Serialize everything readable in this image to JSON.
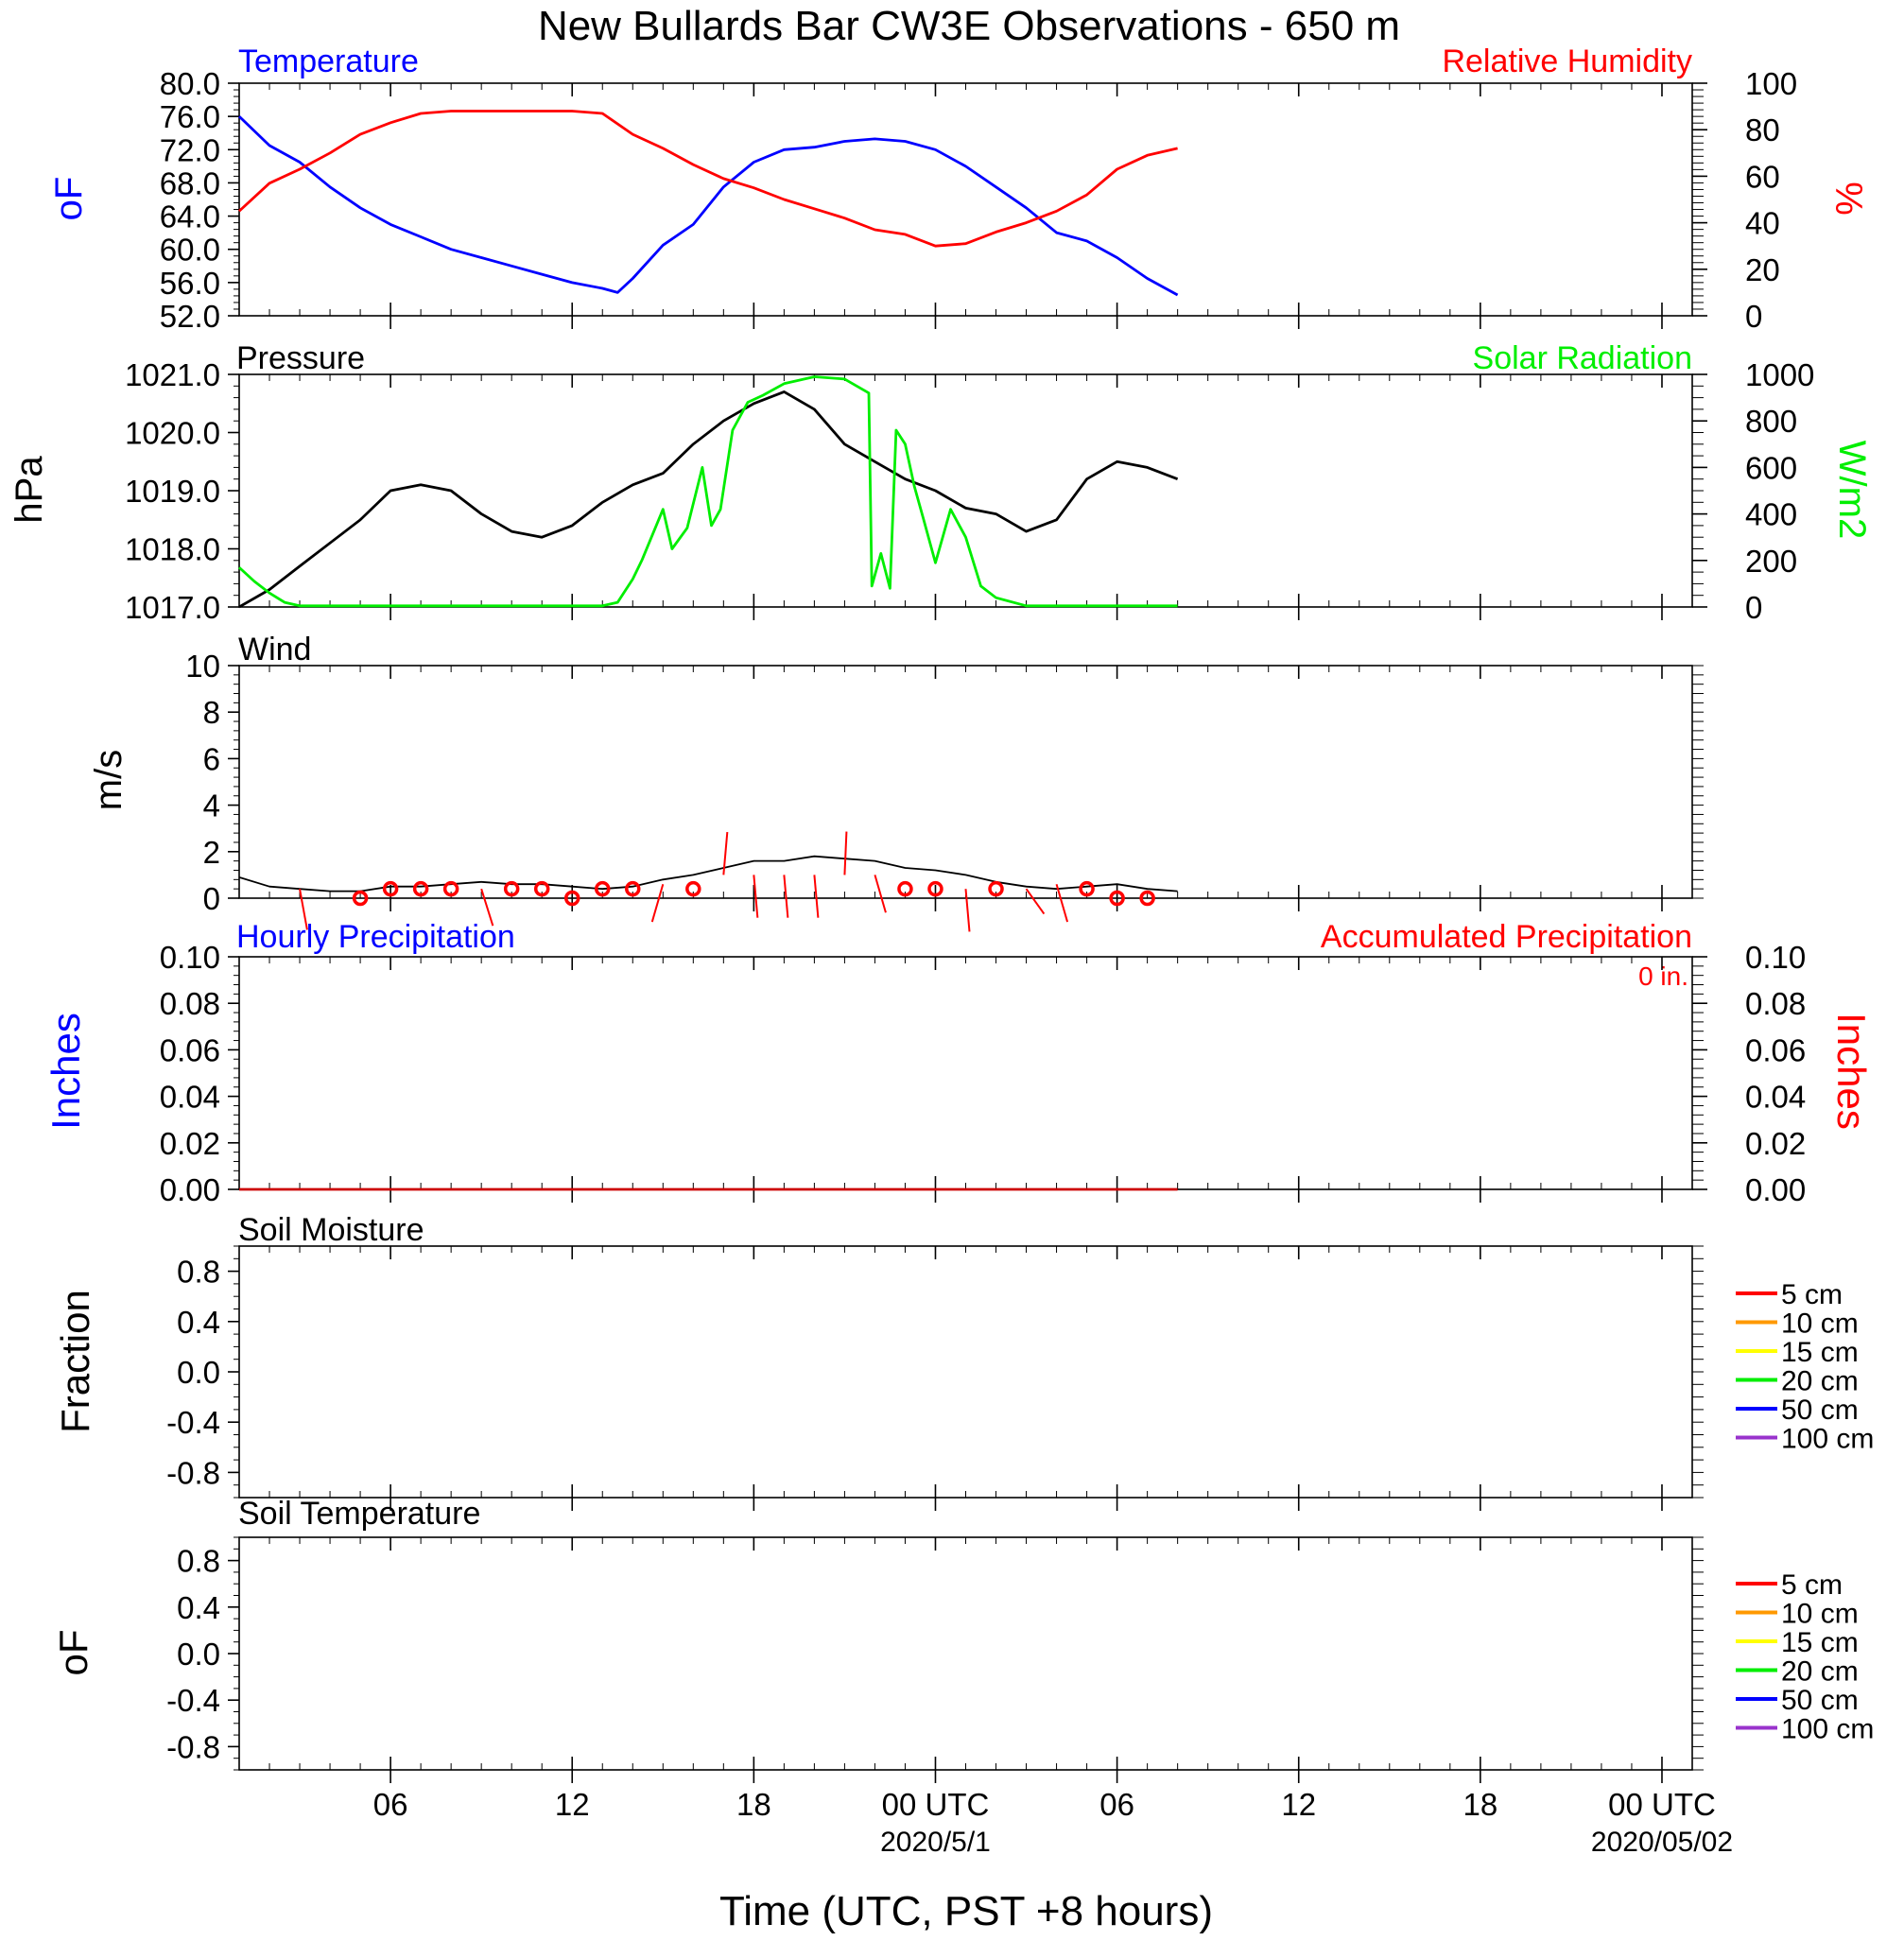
{
  "title": "New Bullards Bar CW3E Observations - 650 m",
  "xlabel": "Time (UTC, PST +8 hours)",
  "x_axis": {
    "tick_labels": [
      "06",
      "12",
      "18",
      "00 UTC",
      "06",
      "12",
      "18",
      "00 UTC"
    ],
    "tick_hours": [
      6,
      12,
      18,
      24,
      30,
      36,
      42,
      48
    ],
    "date_labels": [
      "2020/5/1",
      "2020/05/02"
    ],
    "date_label_hours": [
      24,
      48
    ],
    "range_hours": [
      1,
      49
    ]
  },
  "colors": {
    "temperature": "#0000ff",
    "humidity": "#ff0000",
    "pressure": "#000000",
    "solar": "#00ee00",
    "wind": "#000000",
    "wind_barbs": "#ff0000",
    "hourly_precip": "#0000ff",
    "accum_precip": "#cc0000",
    "depth_colors": [
      "#ff0000",
      "#ff9900",
      "#ffff00",
      "#00ee00",
      "#0000ff",
      "#9933cc"
    ]
  },
  "chart_data": [
    {
      "type": "line",
      "panel": "temperature-humidity",
      "title_left": "Temperature",
      "title_right": "Relative Humidity",
      "ylabel_left": "oF",
      "ylabel_right": "%",
      "y_left_ticks": [
        "80.0",
        "76.0",
        "72.0",
        "68.0",
        "64.0",
        "60.0",
        "56.0",
        "52.0"
      ],
      "y_right_ticks": [
        "100",
        "80",
        "60",
        "40",
        "20",
        "0"
      ],
      "ylim_left": [
        52,
        80
      ],
      "ylim_right": [
        0,
        100
      ],
      "series": [
        {
          "name": "Temperature",
          "axis": "left",
          "x": [
            1,
            2,
            3,
            4,
            5,
            6,
            7,
            8,
            9,
            10,
            11,
            12,
            13,
            13.5,
            14,
            15,
            16,
            17,
            18,
            19,
            20,
            21,
            22,
            23,
            24,
            25,
            26,
            27,
            28,
            29,
            30,
            31,
            32
          ],
          "y": [
            76.0,
            72.5,
            70.5,
            67.5,
            65.0,
            63.0,
            61.5,
            60.0,
            59.0,
            58.0,
            57.0,
            56.0,
            55.3,
            54.8,
            56.5,
            60.5,
            63.0,
            67.5,
            70.5,
            72.0,
            72.3,
            73.0,
            73.3,
            73.0,
            72.0,
            70.0,
            67.5,
            65.0,
            62.0,
            61.0,
            59.0,
            56.5,
            54.5
          ]
        },
        {
          "name": "Relative Humidity",
          "axis": "right",
          "x": [
            1,
            2,
            3,
            4,
            5,
            6,
            7,
            8,
            9,
            10,
            11,
            12,
            13,
            14,
            15,
            16,
            17,
            18,
            19,
            20,
            21,
            22,
            23,
            24,
            25,
            26,
            27,
            28,
            29,
            30,
            31,
            32
          ],
          "y": [
            45,
            57,
            63,
            70,
            78,
            83,
            87,
            88,
            88,
            88,
            88,
            88,
            87,
            78,
            72,
            65,
            59,
            55,
            50,
            46,
            42,
            37,
            35,
            30,
            31,
            36,
            40,
            45,
            52,
            63,
            69,
            72
          ]
        }
      ]
    },
    {
      "type": "line",
      "panel": "pressure-solar",
      "title_left": "Pressure",
      "title_right": "Solar Radiation",
      "ylabel_left": "hPa",
      "ylabel_right": "W/m2",
      "y_left_ticks": [
        "1021.0",
        "1020.0",
        "1019.0",
        "1018.0",
        "1017.0"
      ],
      "y_right_ticks": [
        "1000",
        "800",
        "600",
        "400",
        "200",
        "0"
      ],
      "ylim_left": [
        1017,
        1021
      ],
      "ylim_right": [
        0,
        1000
      ],
      "series": [
        {
          "name": "Pressure",
          "axis": "left",
          "x": [
            1,
            2,
            3,
            4,
            5,
            6,
            7,
            8,
            9,
            10,
            11,
            12,
            13,
            14,
            15,
            16,
            17,
            18,
            19,
            20,
            21,
            22,
            23,
            24,
            25,
            26,
            27,
            28,
            29,
            30,
            31,
            32
          ],
          "y": [
            1017.0,
            1017.3,
            1017.7,
            1018.1,
            1018.5,
            1019.0,
            1019.1,
            1019.0,
            1018.6,
            1018.3,
            1018.2,
            1018.4,
            1018.8,
            1019.1,
            1019.3,
            1019.8,
            1020.2,
            1020.5,
            1020.7,
            1020.4,
            1019.8,
            1019.5,
            1019.2,
            1019.0,
            1018.7,
            1018.6,
            1018.3,
            1018.5,
            1019.2,
            1019.5,
            1019.4,
            1019.2
          ]
        },
        {
          "name": "Solar Radiation",
          "axis": "right",
          "x": [
            1,
            1.5,
            2,
            2.5,
            3,
            13,
            13.5,
            14,
            14.3,
            15,
            15.3,
            15.8,
            16.3,
            16.6,
            16.9,
            17.3,
            17.8,
            18.3,
            19,
            20,
            21,
            21.8,
            21.9,
            22.2,
            22.5,
            22.7,
            23,
            23.3,
            23.6,
            24,
            24.5,
            25,
            25.5,
            26,
            27,
            32
          ],
          "y": [
            170,
            110,
            60,
            20,
            5,
            5,
            20,
            120,
            200,
            420,
            250,
            340,
            600,
            350,
            420,
            760,
            880,
            910,
            960,
            990,
            980,
            920,
            90,
            230,
            80,
            760,
            700,
            520,
            380,
            190,
            420,
            300,
            90,
            40,
            5,
            5
          ]
        }
      ]
    },
    {
      "type": "line",
      "panel": "wind",
      "title_left": "Wind",
      "ylabel_left": "m/s",
      "y_left_ticks": [
        "10",
        "8",
        "6",
        "4",
        "2",
        "0"
      ],
      "ylim_left": [
        0,
        10
      ],
      "series": [
        {
          "name": "Wind",
          "axis": "left",
          "x": [
            1,
            2,
            3,
            4,
            5,
            6,
            7,
            8,
            9,
            10,
            11,
            12,
            13,
            14,
            15,
            16,
            17,
            18,
            19,
            20,
            21,
            22,
            23,
            24,
            25,
            26,
            27,
            28,
            29,
            30,
            31,
            32
          ],
          "y": [
            0.9,
            0.5,
            0.4,
            0.3,
            0.3,
            0.5,
            0.5,
            0.6,
            0.7,
            0.6,
            0.6,
            0.5,
            0.4,
            0.5,
            0.8,
            1.0,
            1.3,
            1.6,
            1.6,
            1.8,
            1.7,
            1.6,
            1.3,
            1.2,
            1.0,
            0.7,
            0.5,
            0.4,
            0.5,
            0.6,
            0.4,
            0.3
          ]
        }
      ],
      "barbs": [
        {
          "x": 3,
          "speed": 0.4,
          "dir_deg": 160
        },
        {
          "x": 5,
          "speed": 0.0,
          "dir_deg": 0
        },
        {
          "x": 6,
          "speed": 0.4,
          "dir_deg": 0
        },
        {
          "x": 7,
          "speed": 0.4,
          "dir_deg": 0
        },
        {
          "x": 8,
          "speed": 0.4,
          "dir_deg": 0
        },
        {
          "x": 9,
          "speed": 0.4,
          "dir_deg": 148
        },
        {
          "x": 10,
          "speed": 0.4,
          "dir_deg": 0
        },
        {
          "x": 11,
          "speed": 0.4,
          "dir_deg": 0
        },
        {
          "x": 12,
          "speed": 0.0,
          "dir_deg": 0
        },
        {
          "x": 13,
          "speed": 0.4,
          "dir_deg": 0
        },
        {
          "x": 14,
          "speed": 0.4,
          "dir_deg": 0
        },
        {
          "x": 15,
          "speed": 0.6,
          "dir_deg": 210
        },
        {
          "x": 16,
          "speed": 0.4,
          "dir_deg": 0
        },
        {
          "x": 17,
          "speed": 1.0,
          "dir_deg": 10
        },
        {
          "x": 18,
          "speed": 1.0,
          "dir_deg": 170
        },
        {
          "x": 19,
          "speed": 1.0,
          "dir_deg": 170
        },
        {
          "x": 20,
          "speed": 1.0,
          "dir_deg": 170
        },
        {
          "x": 21,
          "speed": 1.0,
          "dir_deg": 5
        },
        {
          "x": 22,
          "speed": 1.0,
          "dir_deg": 150
        },
        {
          "x": 23,
          "speed": 0.4,
          "dir_deg": 0
        },
        {
          "x": 24,
          "speed": 0.4,
          "dir_deg": 0
        },
        {
          "x": 25,
          "speed": 0.4,
          "dir_deg": 170
        },
        {
          "x": 26,
          "speed": 0.4,
          "dir_deg": 0
        },
        {
          "x": 27,
          "speed": 0.4,
          "dir_deg": 125
        },
        {
          "x": 28,
          "speed": 0.6,
          "dir_deg": 150
        },
        {
          "x": 29,
          "speed": 0.4,
          "dir_deg": 0
        },
        {
          "x": 30,
          "speed": 0.0,
          "dir_deg": 0
        },
        {
          "x": 31,
          "speed": 0.0,
          "dir_deg": 0
        }
      ]
    },
    {
      "type": "line",
      "panel": "precipitation",
      "title_left": "Hourly Precipitation",
      "title_right": "Accumulated Precipitation",
      "annotation": "0 in.",
      "ylabel_left": "Inches",
      "ylabel_right": "Inches",
      "y_left_ticks": [
        "0.10",
        "0.08",
        "0.06",
        "0.04",
        "0.02",
        "0.00"
      ],
      "y_right_ticks": [
        "0.10",
        "0.08",
        "0.06",
        "0.04",
        "0.02",
        "0.00"
      ],
      "ylim_left": [
        0,
        0.1
      ],
      "ylim_right": [
        0,
        0.1
      ],
      "series": [
        {
          "name": "Accumulated Precipitation",
          "axis": "right",
          "x": [
            1,
            32
          ],
          "y": [
            0,
            0
          ]
        }
      ]
    },
    {
      "type": "line",
      "panel": "soil-moisture",
      "title_left": "Soil Moisture",
      "ylabel_left": "Fraction",
      "y_left_ticks": [
        "0.8",
        "0.4",
        "0.0",
        "-0.4",
        "-0.8"
      ],
      "ylim_left": [
        -1,
        1
      ],
      "legend": [
        "5 cm",
        "10 cm",
        "15 cm",
        "20 cm",
        "50 cm",
        "100 cm"
      ],
      "series": []
    },
    {
      "type": "line",
      "panel": "soil-temperature",
      "title_left": "Soil Temperature",
      "ylabel_left": "oF",
      "y_left_ticks": [
        "0.8",
        "0.4",
        "0.0",
        "-0.4",
        "-0.8"
      ],
      "ylim_left": [
        -1,
        1
      ],
      "legend": [
        "5 cm",
        "10 cm",
        "15 cm",
        "20 cm",
        "50 cm",
        "100 cm"
      ],
      "series": []
    }
  ]
}
